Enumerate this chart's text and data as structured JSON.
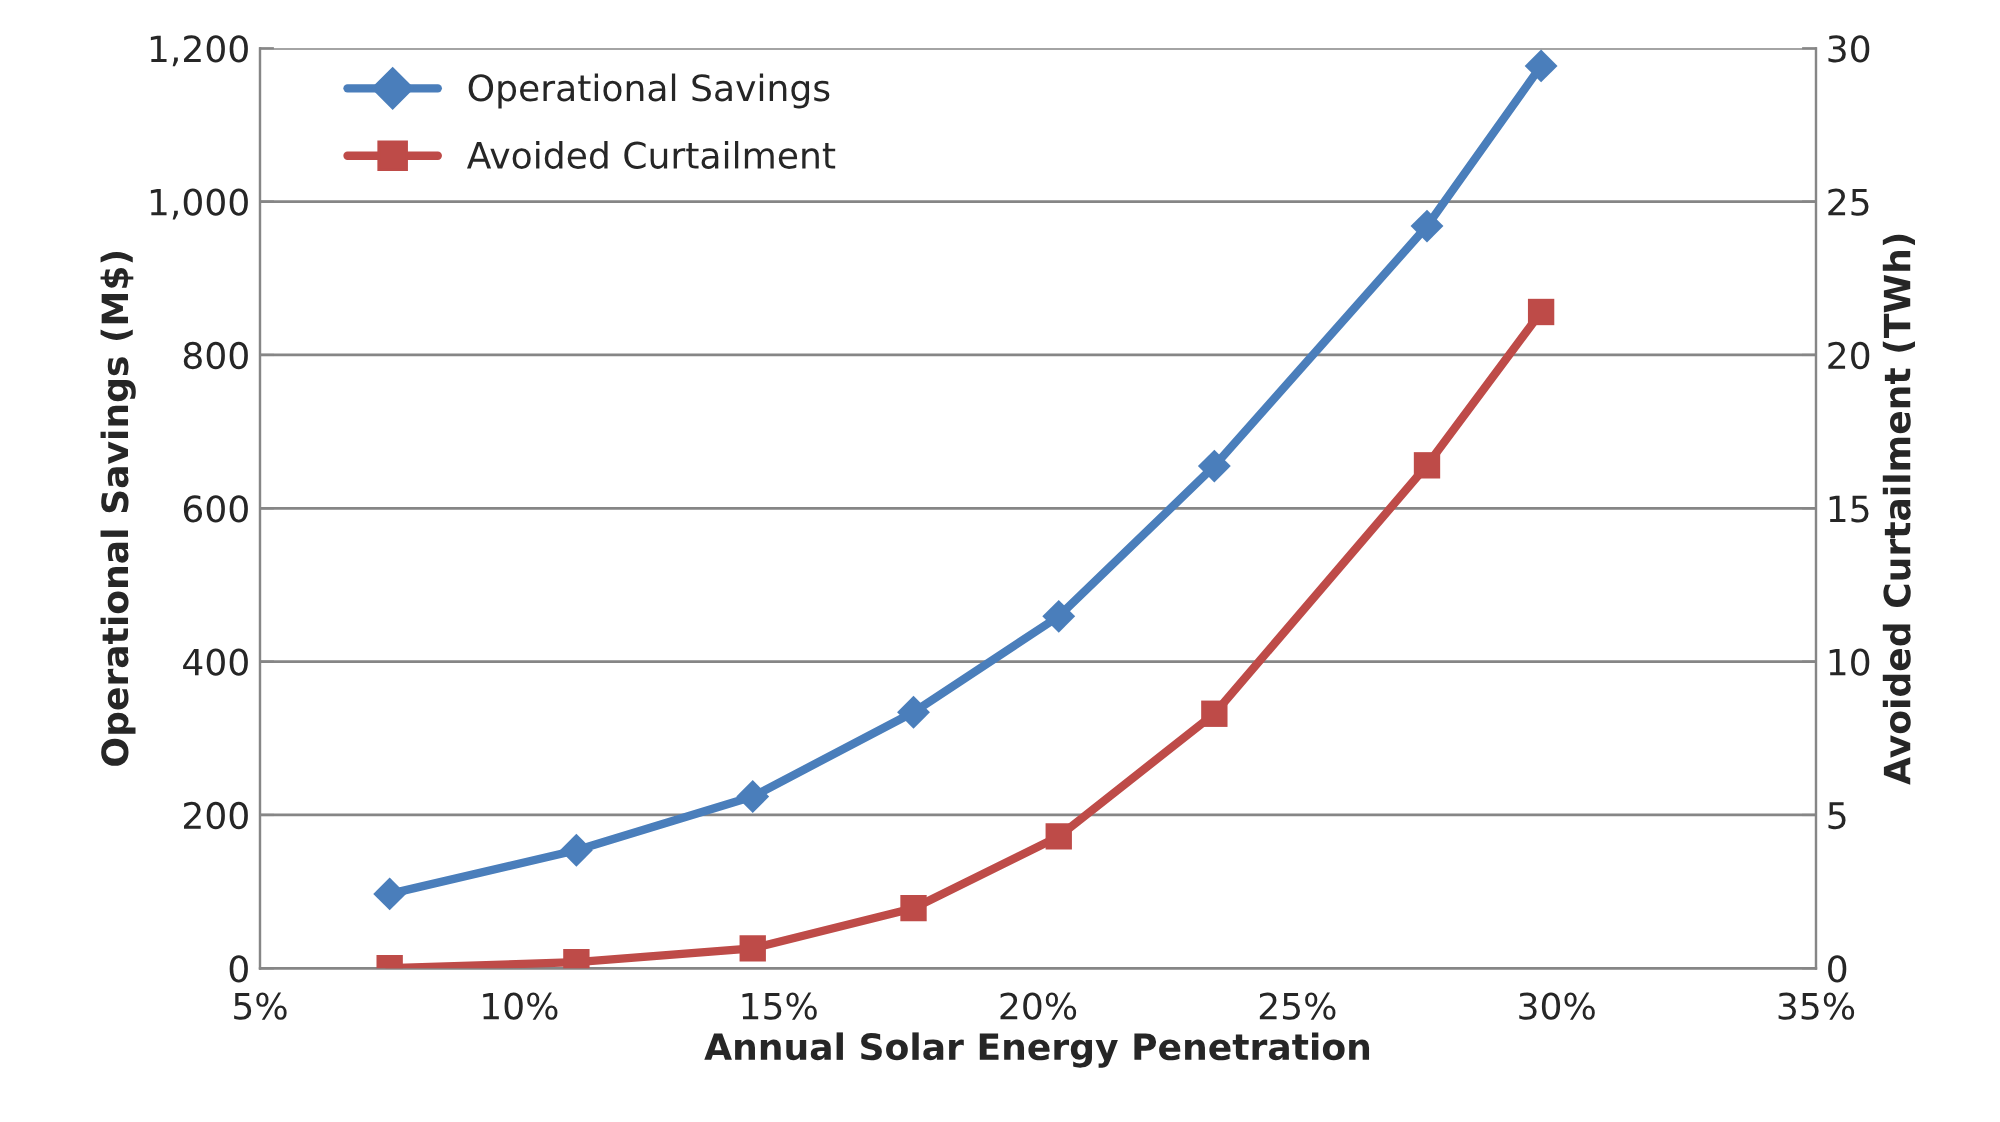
{
  "chart_data": {
    "type": "line",
    "xlabel": "Annual Solar Energy Penetration",
    "ylabel": "Operational Savings (M$)",
    "y2label": "Avoided Curtailment (TWh)",
    "x": [
      7.5,
      11.1,
      14.5,
      17.6,
      20.4,
      23.4,
      27.5,
      29.7
    ],
    "series": [
      {
        "name": "Operational Savings",
        "color": "#4a7ebb",
        "marker": "diamond",
        "values": [
          97,
          154,
          224,
          334,
          459,
          655,
          968,
          1177
        ]
      },
      {
        "name": "Avoided Curtailment",
        "color": "#be4b48",
        "marker": "square",
        "axis": "y2",
        "values": [
          0,
          0.2,
          0.65,
          1.96,
          4.3,
          8.3,
          16.4,
          21.4
        ]
      }
    ],
    "xlim": [
      5,
      35
    ],
    "xticks": [
      {
        "value": 5,
        "label": "5%"
      },
      {
        "value": 10,
        "label": "10%"
      },
      {
        "value": 15,
        "label": "15%"
      },
      {
        "value": 20,
        "label": "20%"
      },
      {
        "value": 25,
        "label": "25%"
      },
      {
        "value": 30,
        "label": "30%"
      },
      {
        "value": 35,
        "label": "35%"
      }
    ],
    "ylim": [
      0,
      1200
    ],
    "yticks": [
      0,
      200,
      400,
      600,
      800,
      {
        "value": 1000,
        "label": "1,000"
      },
      {
        "value": 1200,
        "label": "1,200"
      }
    ],
    "y2lim": [
      0,
      30
    ],
    "y2ticks": [
      0,
      5,
      10,
      15,
      20,
      25,
      30
    ],
    "grid": "y",
    "legend": "top left",
    "line_style": "solid"
  }
}
